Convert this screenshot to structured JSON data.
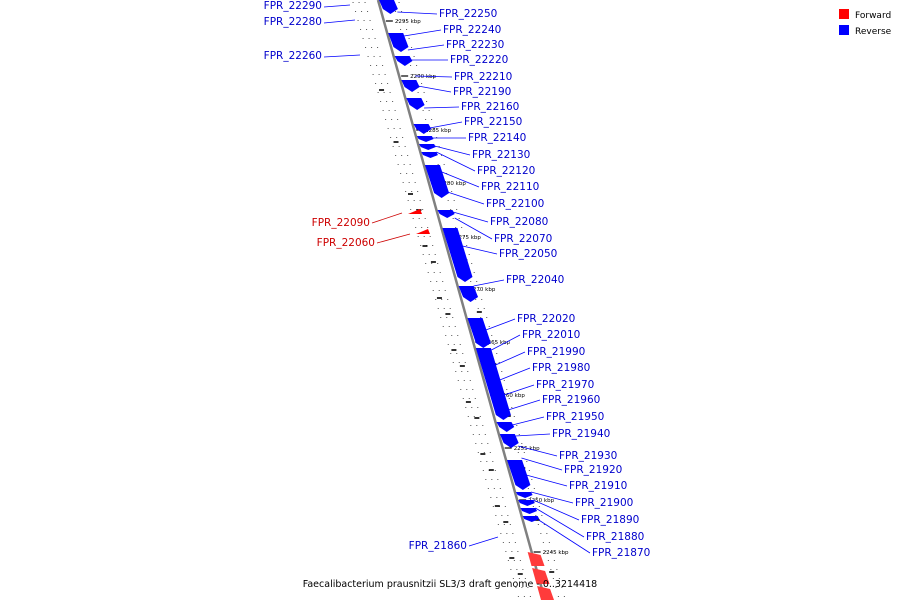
{
  "colors": {
    "forward": "#ff0000",
    "reverse": "#0000ff",
    "forward_fill": "#ff3b3b",
    "backbone": "#808080",
    "leader_rev": "#0000ff",
    "leader_fwd": "#cc0000",
    "text_rev": "#0000cc",
    "text_fwd": "#cc0000"
  },
  "legend": [
    {
      "label": "Forward",
      "color": "#ff0000"
    },
    {
      "label": "Reverse",
      "color": "#0000ff"
    }
  ],
  "title": "Faecalibacterium prausnitzii SL3/3 draft genome - 0..3214418",
  "kbp_ticks": [
    "2295 kbp",
    "2290 kbp",
    "2285 kbp",
    "2280 kbp",
    "2275 kbp",
    "2270 kbp",
    "2265 kbp",
    "2260 kbp",
    "2255 kbp",
    "2250 kbp",
    "2245 kbp"
  ],
  "genes_reverse_left": [
    "FPR_22290",
    "FPR_22280",
    "FPR_22260"
  ],
  "genes_reverse_right": [
    "FPR_22250",
    "FPR_22240",
    "FPR_22230",
    "FPR_22220",
    "FPR_22210",
    "FPR_22190",
    "FPR_22160",
    "FPR_22150",
    "FPR_22140",
    "FPR_22130",
    "FPR_22120",
    "FPR_22110",
    "FPR_22100",
    "FPR_22080",
    "FPR_22070",
    "FPR_22050",
    "FPR_22040",
    "FPR_22020",
    "FPR_22010",
    "FPR_21990",
    "FPR_21980",
    "FPR_21970",
    "FPR_21960",
    "FPR_21950",
    "FPR_21940",
    "FPR_21930",
    "FPR_21920",
    "FPR_21910",
    "FPR_21900",
    "FPR_21890",
    "FPR_21880",
    "FPR_21870"
  ],
  "genes_forward_left": [
    "FPR_22090",
    "FPR_22060",
    "FPR_21860"
  ]
}
